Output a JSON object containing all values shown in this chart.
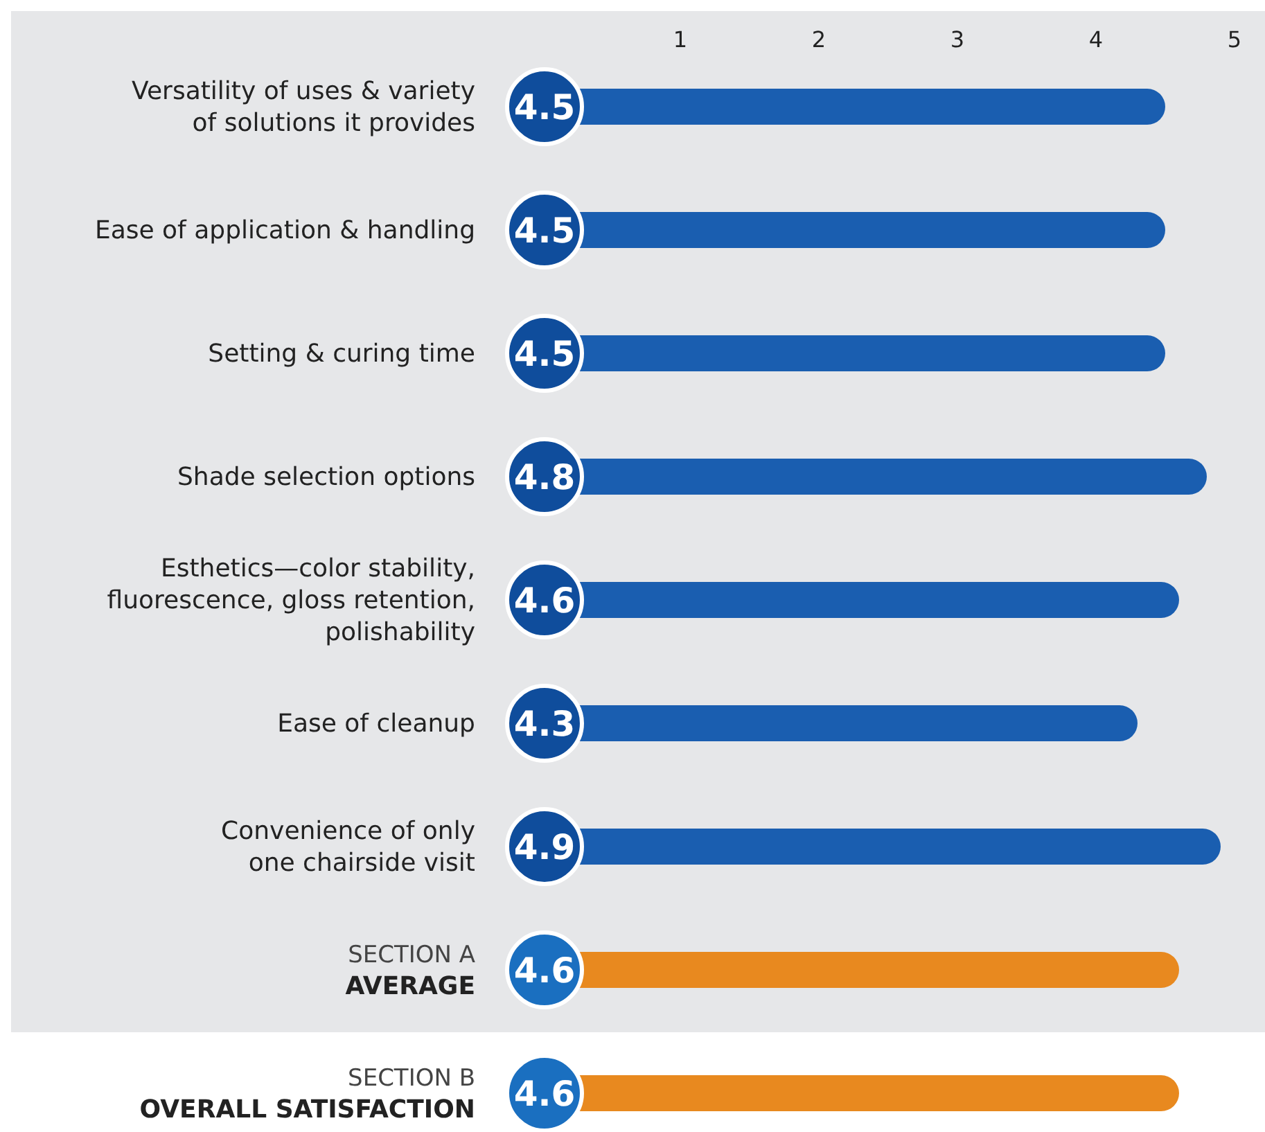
{
  "chart_data": {
    "type": "bar",
    "orientation": "horizontal",
    "categories": [
      "Versatility of uses & variety\nof solutions it provides",
      "Ease of application & handling",
      "Setting & curing time",
      "Shade selection options",
      "Esthetics—color stability,\nfluorescence, gloss retention,\npolishability",
      "Ease of cleanup",
      "Convenience of only\none chairside visit",
      "SECTION A\nAVERAGE",
      "SECTION B\nOVERALL SATISFACTION"
    ],
    "values": [
      4.5,
      4.5,
      4.5,
      4.8,
      4.6,
      4.3,
      4.9,
      4.6,
      4.6
    ],
    "colors": [
      "#1a5eb0",
      "#1a5eb0",
      "#1a5eb0",
      "#1a5eb0",
      "#1a5eb0",
      "#1a5eb0",
      "#1a5eb0",
      "#e8891f",
      "#e8891f"
    ],
    "xlim": [
      0,
      5
    ],
    "xticks": [
      1,
      2,
      3,
      4,
      5
    ],
    "data_labels": true,
    "grid": false
  }
}
